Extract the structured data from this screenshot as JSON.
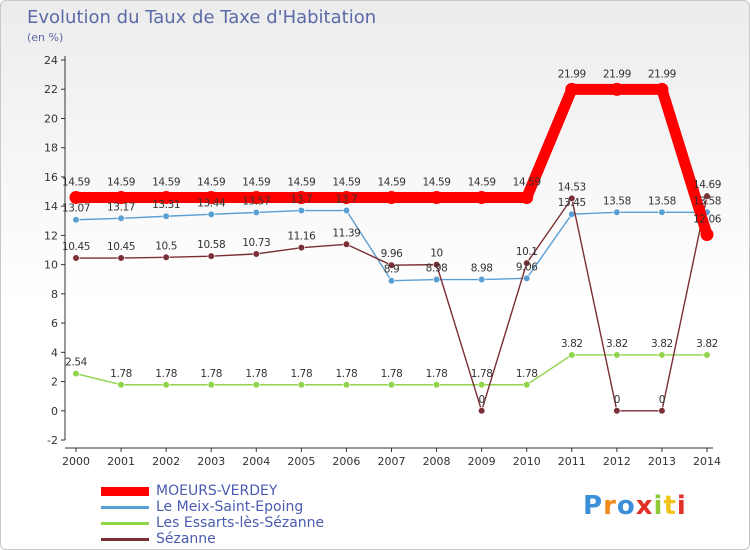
{
  "chart_data": {
    "type": "line",
    "title": "Evolution du Taux de Taxe d'Habitation",
    "ylabel": "(en %)",
    "xlabel": "",
    "x": [
      "2000",
      "2001",
      "2002",
      "2003",
      "2004",
      "2005",
      "2006",
      "2007",
      "2008",
      "2009",
      "2010",
      "2011",
      "2012",
      "2013",
      "2014"
    ],
    "ylim": [
      -2,
      24
    ],
    "yticks": [
      -2,
      0,
      2,
      4,
      6,
      8,
      10,
      12,
      14,
      16,
      18,
      20,
      22,
      24
    ],
    "grid": false,
    "legend": "bottom-left",
    "series": [
      {
        "name": "MOEURS-VERDEY",
        "color": "#ff0000",
        "values": [
          14.59,
          14.59,
          14.59,
          14.59,
          14.59,
          14.59,
          14.59,
          14.59,
          14.59,
          14.59,
          14.59,
          21.99,
          21.99,
          21.99,
          12.06
        ],
        "labels": [
          "14.59",
          "14.59",
          "14.59",
          "14.59",
          "14.59",
          "14.59",
          "14.59",
          "14.59",
          "14.59",
          "14.59",
          "14.59",
          "21.99",
          "21.99",
          "21.99",
          "12.06"
        ]
      },
      {
        "name": "Le Meix-Saint-Epoing",
        "color": "#5a9fd4",
        "values": [
          13.07,
          13.17,
          13.31,
          13.44,
          13.57,
          13.7,
          13.7,
          8.9,
          8.98,
          8.98,
          9.06,
          13.45,
          13.58,
          13.58,
          13.58
        ],
        "labels": [
          "13.07",
          "13.17",
          "13.31",
          "13.44",
          "13.57",
          "13.7",
          "13.7",
          "8.9",
          "8.98",
          "8.98",
          "9.06",
          "13.45",
          "13.58",
          "13.58",
          "13.58"
        ]
      },
      {
        "name": "Les Essarts-lès-Sézanne",
        "color": "#8fd44a",
        "values": [
          2.54,
          1.78,
          1.78,
          1.78,
          1.78,
          1.78,
          1.78,
          1.78,
          1.78,
          1.78,
          1.78,
          3.82,
          3.82,
          3.82,
          3.82
        ],
        "labels": [
          "2.54",
          "1.78",
          "1.78",
          "1.78",
          "1.78",
          "1.78",
          "1.78",
          "1.78",
          "1.78",
          "1.78",
          "1.78",
          "3.82",
          "3.82",
          "3.82",
          "3.82"
        ]
      },
      {
        "name": "Sézanne",
        "color": "#7a2e35",
        "values": [
          10.45,
          10.45,
          10.5,
          10.58,
          10.73,
          11.16,
          11.39,
          9.96,
          10,
          0,
          10.1,
          14.53,
          0,
          0,
          14.69
        ],
        "labels": [
          "10.45",
          "10.45",
          "10.5",
          "10.58",
          "10.73",
          "11.16",
          "11.39",
          "9.96",
          "10",
          "0",
          "10.1",
          "14.53",
          "0",
          "0",
          "14.69"
        ]
      }
    ]
  },
  "logo": {
    "text": "Proxiti",
    "letter_colors": [
      "#3a8fd8",
      "#f08a1c",
      "#3a8fd8",
      "#e0302a",
      "#8fc93a",
      "#f0c419",
      "#e0302a"
    ]
  }
}
